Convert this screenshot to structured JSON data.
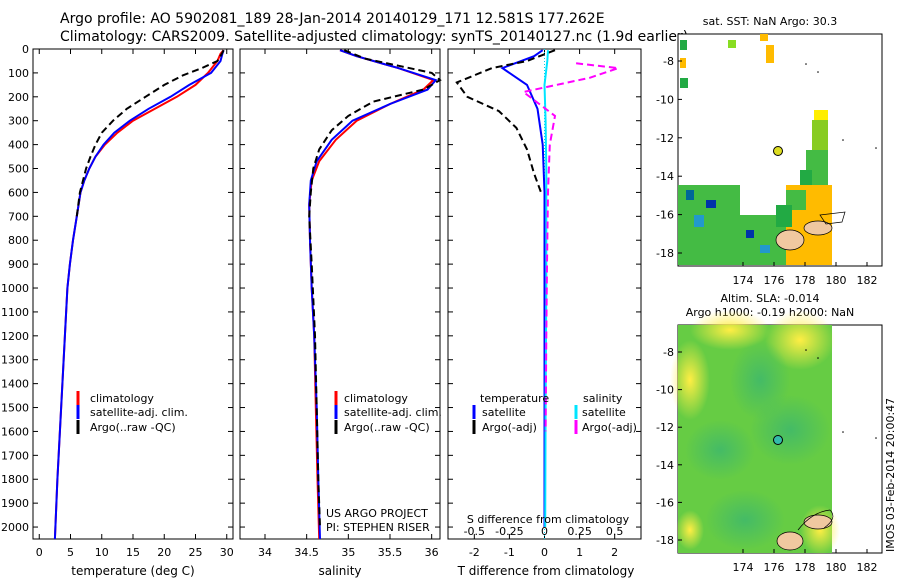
{
  "header": {
    "line1": "Argo profile: AO 5902081_189 28-Jan-2014 20140129_171 12.581S 177.262E",
    "line2": "Climatology: CARS2009. Satellite-adjusted climatology: synTS_20140127.nc (1.9d earlier)"
  },
  "colors": {
    "climatology": "#ff0000",
    "satellite": "#0000ff",
    "argo": "#000000",
    "sat_salinity": "#00e5ff",
    "argo_salinity": "#ff00ff"
  },
  "chart_data": [
    {
      "type": "line",
      "xlabel": "temperature (deg C)",
      "ylim": [
        0,
        2050
      ],
      "xlim": [
        -1,
        31
      ],
      "xticks": [
        0,
        5,
        10,
        15,
        20,
        25,
        30
      ],
      "yticks": [
        0,
        100,
        200,
        300,
        400,
        500,
        600,
        700,
        800,
        900,
        1000,
        1100,
        1200,
        1300,
        1400,
        1500,
        1600,
        1700,
        1800,
        1900,
        2000
      ],
      "legend": [
        "climatology",
        "satellite-adj. clim.",
        "Argo(..raw -QC)"
      ],
      "series": [
        {
          "name": "climatology",
          "points": [
            [
              29.5,
              5
            ],
            [
              29,
              20
            ],
            [
              28.5,
              50
            ],
            [
              27,
              100
            ],
            [
              25,
              150
            ],
            [
              22,
              200
            ],
            [
              18.5,
              250
            ],
            [
              15,
              300
            ],
            [
              12.5,
              350
            ],
            [
              10.5,
              400
            ],
            [
              9,
              450
            ],
            [
              8,
              500
            ],
            [
              7.2,
              550
            ],
            [
              6.6,
              600
            ],
            [
              6,
              700
            ],
            [
              5.4,
              800
            ],
            [
              4.9,
              900
            ],
            [
              4.5,
              1000
            ],
            [
              4.1,
              1200
            ],
            [
              3.7,
              1400
            ],
            [
              3.3,
              1600
            ],
            [
              2.9,
              1800
            ],
            [
              2.5,
              2050
            ]
          ]
        },
        {
          "name": "satellite-adj. clim.",
          "points": [
            [
              29.5,
              5
            ],
            [
              29.3,
              20
            ],
            [
              29,
              50
            ],
            [
              27.5,
              100
            ],
            [
              24,
              150
            ],
            [
              21,
              200
            ],
            [
              17.5,
              250
            ],
            [
              14.5,
              300
            ],
            [
              12,
              350
            ],
            [
              10.3,
              400
            ],
            [
              9,
              450
            ],
            [
              8,
              500
            ],
            [
              7.2,
              550
            ],
            [
              6.6,
              600
            ],
            [
              6,
              700
            ],
            [
              5.4,
              800
            ],
            [
              4.9,
              900
            ],
            [
              4.5,
              1000
            ],
            [
              4.1,
              1200
            ],
            [
              3.7,
              1400
            ],
            [
              3.3,
              1600
            ],
            [
              2.9,
              1800
            ],
            [
              2.5,
              2050
            ]
          ]
        },
        {
          "name": "Argo(..raw -QC)",
          "points": [
            [
              29.5,
              5
            ],
            [
              29.2,
              20
            ],
            [
              28.5,
              50
            ],
            [
              26,
              80
            ],
            [
              23,
              110
            ],
            [
              20,
              150
            ],
            [
              17,
              200
            ],
            [
              14,
              250
            ],
            [
              11.8,
              300
            ],
            [
              10,
              350
            ],
            [
              9,
              400
            ],
            [
              8.2,
              450
            ],
            [
              7.5,
              500
            ],
            [
              7,
              550
            ],
            [
              6.5,
              600
            ],
            [
              6,
              700
            ]
          ]
        }
      ]
    },
    {
      "type": "line",
      "xlabel": "salinity",
      "ylim": [
        0,
        2050
      ],
      "xlim": [
        33.7,
        36.1
      ],
      "xticks": [
        34,
        34.5,
        35,
        35.5,
        36
      ],
      "legend": [
        "climatology",
        "satellite-adj. clim.",
        "Argo(..raw -QC)"
      ],
      "annotations": [
        "US ARGO PROJECT",
        "PI: STEPHEN RISER"
      ],
      "series": [
        {
          "name": "climatology",
          "points": [
            [
              34.9,
              5
            ],
            [
              35.1,
              30
            ],
            [
              35.6,
              80
            ],
            [
              36.02,
              130
            ],
            [
              35.9,
              170
            ],
            [
              35.5,
              230
            ],
            [
              35.1,
              300
            ],
            [
              34.85,
              380
            ],
            [
              34.65,
              470
            ],
            [
              34.56,
              550
            ],
            [
              34.53,
              650
            ],
            [
              34.54,
              800
            ],
            [
              34.56,
              1000
            ],
            [
              34.59,
              1200
            ],
            [
              34.61,
              1500
            ],
            [
              34.63,
              1800
            ],
            [
              34.65,
              2050
            ]
          ]
        },
        {
          "name": "satellite-adj. clim.",
          "points": [
            [
              34.9,
              5
            ],
            [
              35.1,
              30
            ],
            [
              35.6,
              80
            ],
            [
              36.05,
              130
            ],
            [
              35.95,
              170
            ],
            [
              35.5,
              230
            ],
            [
              35.05,
              300
            ],
            [
              34.8,
              380
            ],
            [
              34.62,
              470
            ],
            [
              34.55,
              550
            ],
            [
              34.53,
              650
            ],
            [
              34.54,
              800
            ],
            [
              34.56,
              1000
            ],
            [
              34.59,
              1200
            ],
            [
              34.62,
              1500
            ],
            [
              34.64,
              1800
            ],
            [
              34.66,
              2050
            ]
          ]
        },
        {
          "name": "Argo(..raw -QC)",
          "points": [
            [
              34.95,
              5
            ],
            [
              35.2,
              40
            ],
            [
              35.6,
              70
            ],
            [
              36.0,
              100
            ],
            [
              36.1,
              130
            ],
            [
              35.9,
              170
            ],
            [
              35.3,
              220
            ],
            [
              35.0,
              280
            ],
            [
              34.8,
              340
            ],
            [
              34.65,
              420
            ],
            [
              34.58,
              500
            ],
            [
              34.55,
              600
            ],
            [
              34.53,
              700
            ],
            [
              34.56,
              900
            ],
            [
              34.6,
              1200
            ],
            [
              34.62,
              1500
            ],
            [
              34.64,
              1800
            ],
            [
              34.66,
              2000
            ]
          ]
        }
      ]
    },
    {
      "type": "line",
      "xlabel": "T difference from climatology",
      "title_bottom": "S difference from climatology",
      "ylim": [
        0,
        2050
      ],
      "xlim": [
        -2.75,
        2.75
      ],
      "xticks": [
        -2,
        -1,
        0,
        1,
        2
      ],
      "xticks_top": [
        -0.5,
        -0.25,
        0,
        0.25,
        0.5
      ],
      "legend": [
        "temperature",
        "satellite",
        "Argo(-adj)",
        "salinity",
        "satellite",
        "Argo(-adj)"
      ],
      "series": [
        {
          "name": "satellite",
          "points": [
            [
              -0.05,
              5
            ],
            [
              -0.3,
              30
            ],
            [
              -1.2,
              80
            ],
            [
              -0.5,
              150
            ],
            [
              -0.2,
              250
            ],
            [
              -0.05,
              400
            ],
            [
              0,
              600
            ],
            [
              0,
              2000
            ]
          ]
        },
        {
          "name": "Argo(-adj)",
          "points": [
            [
              0.3,
              5
            ],
            [
              -0.5,
              50
            ],
            [
              -1.5,
              80
            ],
            [
              -2.5,
              140
            ],
            [
              -2.2,
              200
            ],
            [
              -1.3,
              260
            ],
            [
              -0.8,
              330
            ],
            [
              -0.5,
              420
            ],
            [
              -0.3,
              520
            ],
            [
              -0.1,
              600
            ]
          ]
        },
        {
          "name": "satellite",
          "points": [
            [
              0.1,
              5
            ],
            [
              0.08,
              50
            ],
            [
              0,
              150
            ],
            [
              0.03,
              300
            ],
            [
              0.05,
              500
            ],
            [
              0.05,
              1000
            ],
            [
              0.03,
              1500
            ],
            [
              0.02,
              2000
            ]
          ]
        },
        {
          "name": "Argo(-adj)",
          "points": [
            [
              0.9,
              60
            ],
            [
              2.1,
              80
            ],
            [
              1.3,
              120
            ],
            [
              -0.6,
              180
            ],
            [
              0.3,
              280
            ],
            [
              0.15,
              400
            ],
            [
              0.1,
              600
            ],
            [
              0.07,
              900
            ],
            [
              0.05,
              1200
            ],
            [
              0.03,
              1600
            ]
          ]
        }
      ]
    }
  ],
  "map_sst": {
    "title": "sat. SST: NaN Argo: 30.3",
    "xticks": [
      "174",
      "176",
      "178",
      "180",
      "182"
    ],
    "yticks": [
      "-8",
      "-10",
      "-12",
      "-14",
      "-16",
      "-18"
    ]
  },
  "map_sla": {
    "title1": "Altim. SLA: -0.014",
    "title2": "Argo h1000: -0.19 h2000: NaN",
    "xticks": [
      "174",
      "176",
      "178",
      "180",
      "182"
    ],
    "yticks": [
      "-8",
      "-10",
      "-12",
      "-14",
      "-16",
      "-18"
    ]
  },
  "footer": {
    "imos": "IMOS 03-Feb-2014 20:00:47"
  }
}
